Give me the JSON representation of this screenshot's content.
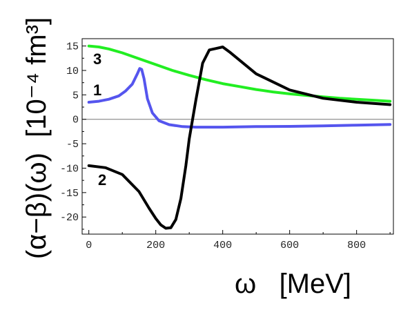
{
  "chart_data": {
    "type": "line",
    "xlabel": "ω   [MeV]",
    "ylabel": "(α−β)(ω)  [10⁻⁴ fm³]",
    "xlim": [
      -20,
      910
    ],
    "ylim": [
      -23.5,
      16.5
    ],
    "xticks": [
      0,
      200,
      400,
      600,
      800
    ],
    "yticks": [
      15,
      10,
      5,
      0,
      -5,
      -10,
      -15,
      -20
    ],
    "tick_labels_x": [
      "0",
      "200",
      "400",
      "600",
      "800"
    ],
    "tick_labels_y": [
      "15",
      "10",
      "5",
      "0",
      "-5",
      "-10",
      "-15",
      "-20"
    ],
    "grid": false,
    "zero_line": true,
    "series": [
      {
        "name": "1",
        "color": "#5555ee",
        "x": [
          0,
          30,
          60,
          90,
          110,
          130,
          145,
          152,
          158,
          165,
          175,
          190,
          210,
          240,
          280,
          320,
          400,
          500,
          600,
          700,
          800,
          900
        ],
        "y": [
          3.5,
          3.7,
          4.1,
          4.8,
          5.8,
          7.2,
          9.3,
          10.4,
          10.2,
          8.3,
          4.2,
          1.3,
          -0.3,
          -1.1,
          -1.5,
          -1.6,
          -1.6,
          -1.5,
          -1.45,
          -1.35,
          -1.2,
          -1.05
        ]
      },
      {
        "name": "2",
        "color": "#000000",
        "x": [
          0,
          50,
          100,
          150,
          180,
          200,
          215,
          230,
          245,
          260,
          275,
          290,
          300,
          320,
          340,
          360,
          380,
          400,
          420,
          500,
          600,
          700,
          800,
          900
        ],
        "y": [
          -9.5,
          -9.9,
          -11.3,
          -14.8,
          -18.2,
          -20.3,
          -21.6,
          -22.3,
          -22.2,
          -20.5,
          -16.2,
          -9.5,
          -4.0,
          4.0,
          11.5,
          14.2,
          14.5,
          14.8,
          13.8,
          9.3,
          6.0,
          4.3,
          3.5,
          3.0
        ]
      },
      {
        "name": "3",
        "color": "#22ee22",
        "x": [
          0,
          30,
          60,
          100,
          150,
          200,
          250,
          300,
          350,
          400,
          450,
          500,
          550,
          600,
          650,
          700,
          750,
          800,
          850,
          900
        ],
        "y": [
          15.0,
          14.8,
          14.4,
          13.6,
          12.4,
          11.2,
          10.0,
          9.0,
          8.1,
          7.3,
          6.7,
          6.1,
          5.6,
          5.2,
          4.9,
          4.6,
          4.3,
          4.1,
          3.9,
          3.7
        ]
      }
    ]
  }
}
